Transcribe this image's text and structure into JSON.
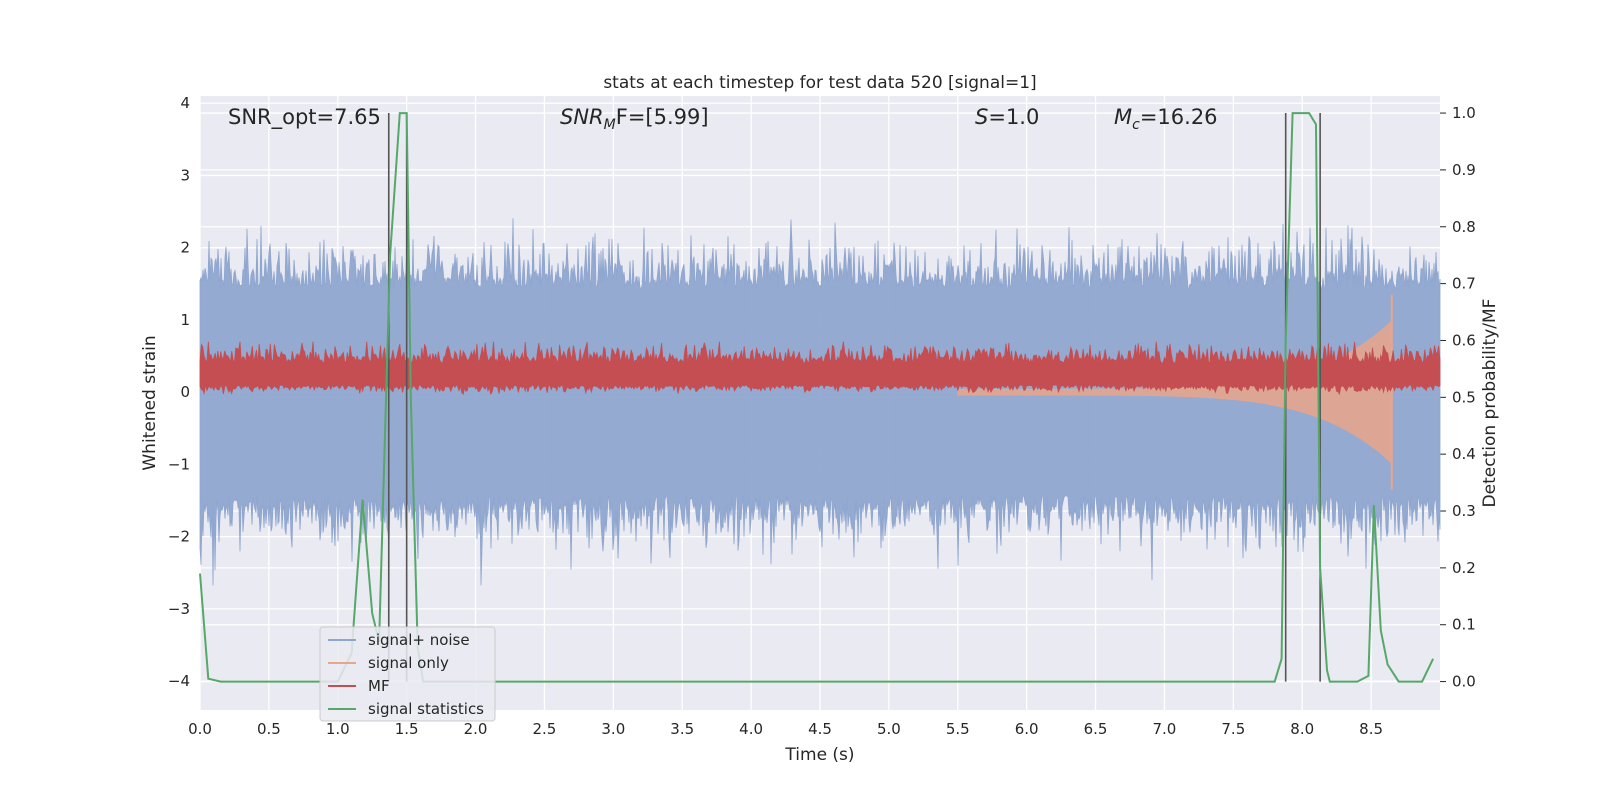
{
  "chart_data": {
    "type": "line",
    "title": "stats at each timestep for test data 520 [signal=1]",
    "xlabel": "Time (s)",
    "ylabel_left": "Whitened strain",
    "ylabel_right": "Detection probability/MF",
    "xlim": [
      0.0,
      9.0
    ],
    "ylim_left": [
      -4.4,
      4.1
    ],
    "ylim_right": [
      -0.05,
      1.03
    ],
    "x_ticks": [
      "0.0",
      "0.5",
      "1.0",
      "1.5",
      "2.0",
      "2.5",
      "3.0",
      "3.5",
      "4.0",
      "4.5",
      "5.0",
      "5.5",
      "6.0",
      "6.5",
      "7.0",
      "7.5",
      "8.0",
      "8.5"
    ],
    "y_ticks_left": [
      "4",
      "3",
      "2",
      "1",
      "0",
      "−1",
      "−2",
      "−3",
      "−4"
    ],
    "y_ticks_right": [
      "1.0",
      "0.9",
      "0.8",
      "0.7",
      "0.6",
      "0.5",
      "0.4",
      "0.3",
      "0.2",
      "0.1",
      "0.0"
    ],
    "grid": true,
    "legend_placement": "lower-left",
    "annotations": {
      "snr_opt": "SNR_opt=7.65",
      "snr_mf_base": "SNR",
      "snr_mf_sub": "M",
      "snr_mf_tail": "F=[5.99]",
      "s_base": "S",
      "s_tail": "=1.0",
      "mc_base": "M",
      "mc_sub": "c",
      "mc_tail": "=16.26"
    },
    "series": [
      {
        "name": "signal+ noise",
        "color": "#8fa6cf",
        "axis": "left",
        "kind": "noise",
        "amplitude_left": 2.3
      },
      {
        "name": "signal only",
        "color": "#e9a58a",
        "axis": "left",
        "kind": "chirp",
        "start_time": 5.5,
        "merger_time": 8.65,
        "peak_left": 1.35
      },
      {
        "name": "MF",
        "color": "#c44e52",
        "axis": "left",
        "kind": "mf_band",
        "base_left": 0.15,
        "spread_left": 0.35
      },
      {
        "name": "signal statistics",
        "color": "#55a868",
        "axis": "right",
        "kind": "line",
        "x": [
          0.0,
          0.06,
          0.15,
          0.4,
          1.0,
          1.1,
          1.18,
          1.25,
          1.3,
          1.38,
          1.45,
          1.5,
          1.53,
          1.58,
          1.62,
          2.0,
          3.0,
          4.0,
          5.0,
          6.0,
          7.0,
          7.5,
          7.8,
          7.85,
          7.88,
          7.93,
          8.05,
          8.1,
          8.13,
          8.18,
          8.2,
          8.3,
          8.4,
          8.48,
          8.52,
          8.57,
          8.62,
          8.7,
          8.8,
          8.87,
          8.95
        ],
        "values": [
          0.19,
          0.005,
          0.0,
          0.0,
          0.0,
          0.05,
          0.32,
          0.12,
          0.07,
          0.75,
          1.0,
          1.0,
          0.5,
          0.06,
          0.0,
          0.0,
          0.0,
          0.0,
          0.0,
          0.0,
          0.0,
          0.0,
          0.0,
          0.04,
          0.6,
          1.0,
          1.0,
          0.98,
          0.2,
          0.02,
          0.0,
          0.0,
          0.0,
          0.01,
          0.31,
          0.09,
          0.03,
          0.0,
          0.0,
          0.0,
          0.04
        ]
      }
    ],
    "vertical_markers": [
      1.37,
      1.5,
      7.88,
      8.13
    ],
    "vertical_marker_color": "#555555"
  }
}
